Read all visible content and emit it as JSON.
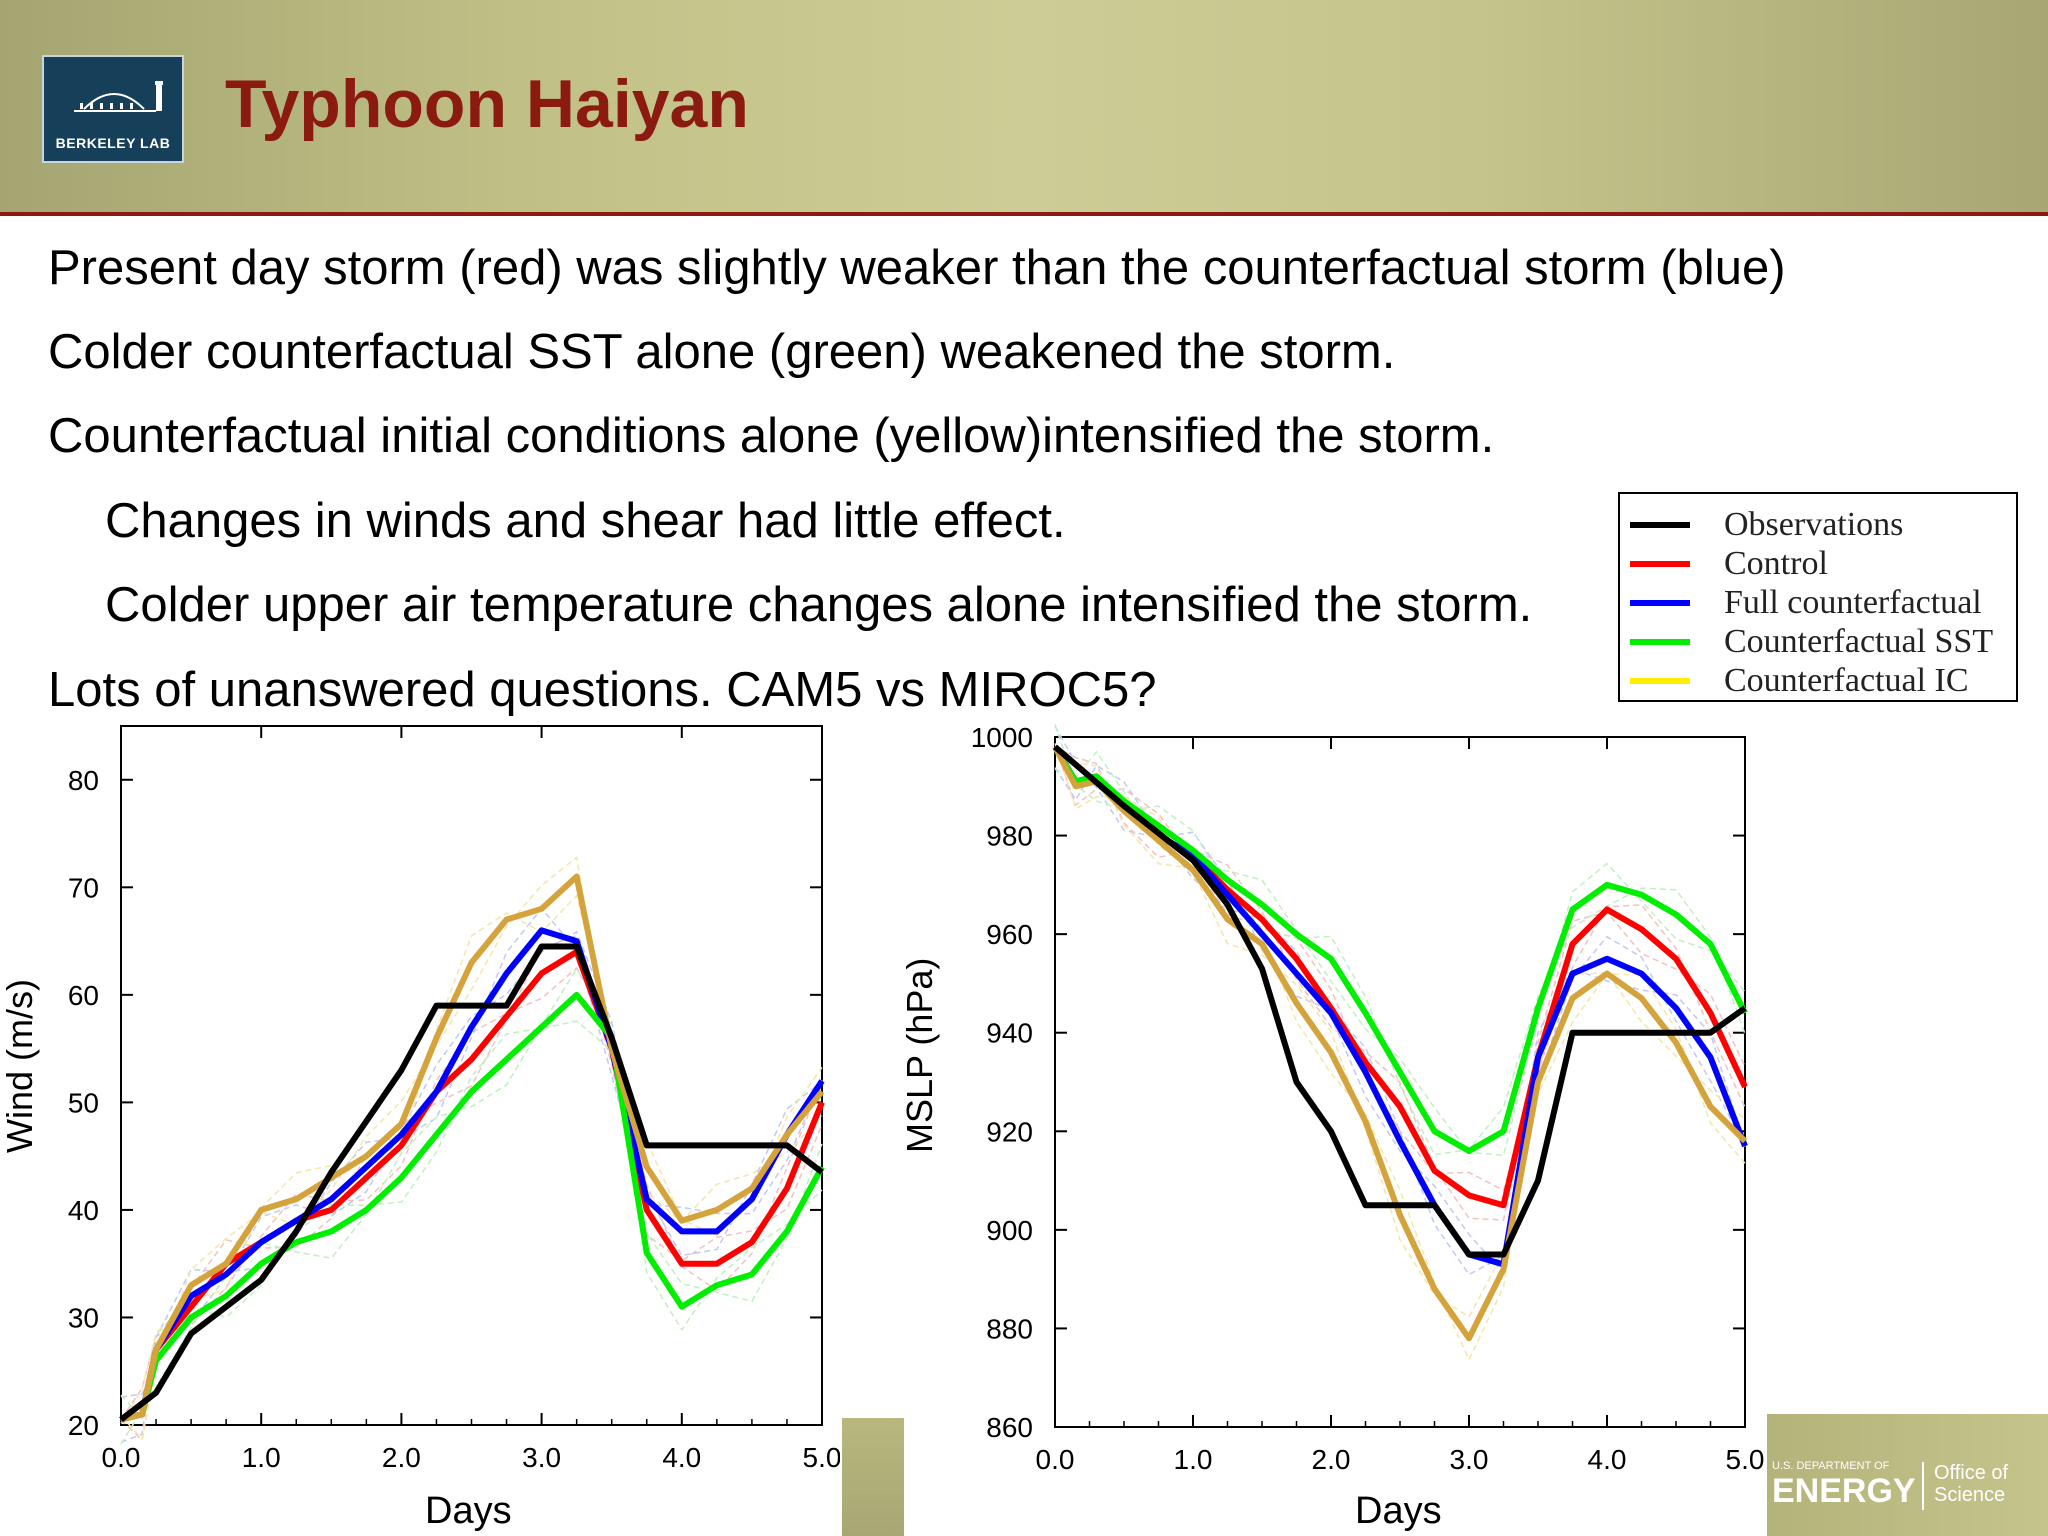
{
  "header": {
    "title": "Typhoon Haiyan",
    "logo_text": "BERKELEY LAB"
  },
  "bullets": [
    "Present day storm (red) was slightly weaker than the counterfactual storm (blue)",
    "Colder counterfactual SST alone (green) weakened the storm.",
    "Counterfactual initial conditions alone (yellow)intensified the storm.",
    "Changes in winds and shear had little effect.",
    "Colder upper air temperature changes alone intensified the storm.",
    "Lots of unanswered questions. CAM5 vs MIROC5?"
  ],
  "legend": [
    {
      "label": "Observations",
      "color": "#000000"
    },
    {
      "label": "Control",
      "color": "#ff0000"
    },
    {
      "label": "Full counterfactual",
      "color": "#0000ff"
    },
    {
      "label": "Counterfactual SST",
      "color": "#00ee00"
    },
    {
      "label": "Counterfactual IC",
      "color": "#ffee00"
    }
  ],
  "footer": {
    "doe_small": "U.S. DEPARTMENT OF",
    "doe_big": "ENERGY",
    "office": "Office of Science"
  },
  "chart_data": [
    {
      "type": "line",
      "xlabel": "Days",
      "ylabel": "Wind (m/s)",
      "xlim": [
        0,
        5
      ],
      "ylim": [
        20,
        85
      ],
      "xticks": [
        "0.0",
        "1.0",
        "2.0",
        "3.0",
        "4.0",
        "5.0"
      ],
      "yticks": [
        20,
        30,
        40,
        50,
        60,
        70,
        80
      ],
      "series": [
        {
          "name": "Control",
          "color": "#ff0000",
          "x": [
            0.0,
            0.15,
            0.25,
            0.5,
            0.75,
            1.0,
            1.25,
            1.5,
            1.75,
            2.0,
            2.25,
            2.5,
            2.75,
            3.0,
            3.25,
            3.5,
            3.75,
            4.0,
            4.25,
            4.5,
            4.75,
            5.0
          ],
          "y": [
            20.5,
            21,
            27,
            31,
            35,
            37,
            39,
            40,
            43,
            46,
            51,
            54,
            58,
            62,
            64,
            55,
            40,
            35,
            35,
            37,
            42,
            50
          ]
        },
        {
          "name": "Full counterfactual",
          "color": "#0000ff",
          "x": [
            0.0,
            0.15,
            0.25,
            0.5,
            0.75,
            1.0,
            1.25,
            1.5,
            1.75,
            2.0,
            2.25,
            2.5,
            2.75,
            3.0,
            3.25,
            3.5,
            3.75,
            4.0,
            4.25,
            4.5,
            4.75,
            5.0
          ],
          "y": [
            20.5,
            21,
            27,
            32,
            34,
            37,
            39,
            41,
            44,
            47,
            51,
            57,
            62,
            66,
            65,
            55,
            41,
            38,
            38,
            41,
            47,
            52
          ]
        },
        {
          "name": "Counterfactual SST",
          "color": "#00ee00",
          "x": [
            0.0,
            0.15,
            0.25,
            0.5,
            0.75,
            1.0,
            1.25,
            1.5,
            1.75,
            2.0,
            2.25,
            2.5,
            2.75,
            3.0,
            3.25,
            3.5,
            3.75,
            4.0,
            4.25,
            4.5,
            4.75,
            5.0
          ],
          "y": [
            20.5,
            21,
            26,
            30,
            32,
            35,
            37,
            38,
            40,
            43,
            47,
            51,
            54,
            57,
            60,
            56,
            36,
            31,
            33,
            34,
            38,
            44
          ]
        },
        {
          "name": "Counterfactual IC",
          "color": "#d4a33c",
          "x": [
            0.0,
            0.15,
            0.25,
            0.5,
            0.75,
            1.0,
            1.25,
            1.5,
            1.75,
            2.0,
            2.25,
            2.5,
            2.75,
            3.0,
            3.25,
            3.5,
            3.75,
            4.0,
            4.25,
            4.5,
            4.75,
            5.0
          ],
          "y": [
            20.5,
            21,
            27,
            33,
            35,
            40,
            41,
            43,
            45,
            48,
            56,
            63,
            67,
            68,
            71,
            55,
            44,
            39,
            40,
            42,
            47,
            51
          ]
        },
        {
          "name": "Observations",
          "color": "#000000",
          "x": [
            0.0,
            0.25,
            0.5,
            0.75,
            1.0,
            1.25,
            1.5,
            2.0,
            2.25,
            2.75,
            3.0,
            3.25,
            3.5,
            3.75,
            4.75,
            5.0
          ],
          "y": [
            20.5,
            23,
            28.5,
            31,
            33.5,
            38,
            43.5,
            53,
            59,
            59,
            64.5,
            64.5,
            56,
            46,
            46,
            43.5
          ]
        }
      ]
    },
    {
      "type": "line",
      "xlabel": "Days",
      "ylabel": "MSLP (hPa)",
      "xlim": [
        0,
        5
      ],
      "ylim": [
        860,
        1000
      ],
      "xticks": [
        "0.0",
        "1.0",
        "2.0",
        "3.0",
        "4.0",
        "5.0"
      ],
      "yticks": [
        860,
        880,
        900,
        920,
        940,
        960,
        980,
        1000
      ],
      "series": [
        {
          "name": "Control",
          "color": "#ff0000",
          "x": [
            0.0,
            0.15,
            0.3,
            0.5,
            0.75,
            1.0,
            1.25,
            1.5,
            1.75,
            2.0,
            2.25,
            2.5,
            2.75,
            3.0,
            3.25,
            3.5,
            3.75,
            4.0,
            4.25,
            4.5,
            4.75,
            5.0
          ],
          "y": [
            998,
            991,
            992,
            986,
            980,
            976,
            969,
            963,
            955,
            945,
            934,
            925,
            912,
            907,
            905,
            935,
            958,
            965,
            961,
            955,
            944,
            929
          ]
        },
        {
          "name": "Full counterfactual",
          "color": "#0000ff",
          "x": [
            0.0,
            0.15,
            0.3,
            0.5,
            0.75,
            1.0,
            1.25,
            1.5,
            1.75,
            2.0,
            2.25,
            2.5,
            2.75,
            3.0,
            3.25,
            3.5,
            3.75,
            4.0,
            4.25,
            4.5,
            4.75,
            5.0
          ],
          "y": [
            998,
            991,
            992,
            986,
            980,
            976,
            968,
            960,
            952,
            944,
            932,
            918,
            905,
            895,
            893,
            935,
            952,
            955,
            952,
            945,
            935,
            917
          ]
        },
        {
          "name": "Counterfactual SST",
          "color": "#00ee00",
          "x": [
            0.0,
            0.15,
            0.3,
            0.5,
            0.75,
            1.0,
            1.25,
            1.5,
            1.75,
            2.0,
            2.25,
            2.5,
            2.75,
            3.0,
            3.25,
            3.5,
            3.75,
            4.0,
            4.25,
            4.5,
            4.75,
            5.0
          ],
          "y": [
            998,
            991,
            992,
            987,
            982,
            977,
            971,
            966,
            960,
            955,
            944,
            932,
            920,
            916,
            920,
            945,
            965,
            970,
            968,
            964,
            958,
            944
          ]
        },
        {
          "name": "Counterfactual IC",
          "color": "#d4a33c",
          "x": [
            0.0,
            0.15,
            0.3,
            0.5,
            0.75,
            1.0,
            1.25,
            1.5,
            1.75,
            2.0,
            2.25,
            2.5,
            2.75,
            3.0,
            3.25,
            3.5,
            3.75,
            4.0,
            4.25,
            4.5,
            4.75,
            5.0
          ],
          "y": [
            998,
            990,
            991,
            985,
            979,
            973,
            963,
            958,
            946,
            936,
            922,
            903,
            888,
            878,
            892,
            930,
            947,
            952,
            947,
            938,
            925,
            918
          ]
        },
        {
          "name": "Observations",
          "color": "#000000",
          "x": [
            0.0,
            0.5,
            1.0,
            1.25,
            1.5,
            1.75,
            2.0,
            2.25,
            2.75,
            3.0,
            3.25,
            3.5,
            3.75,
            4.75,
            5.0
          ],
          "y": [
            998,
            986,
            975,
            966,
            953,
            930,
            920,
            905,
            905,
            895,
            895,
            910,
            940,
            940,
            945
          ]
        }
      ]
    }
  ]
}
